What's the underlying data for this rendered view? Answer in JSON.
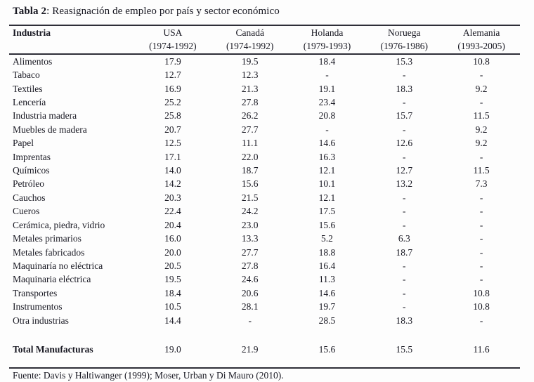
{
  "title": {
    "label_bold": "Tabla 2",
    "label_rest": ": Reasignación de empleo por país y sector económico"
  },
  "table": {
    "col_header": "Industria",
    "columns": [
      {
        "country": "USA",
        "period": "(1974-1992)"
      },
      {
        "country": "Canadá",
        "period": "(1974-1992)"
      },
      {
        "country": "Holanda",
        "period": "(1979-1993)"
      },
      {
        "country": "Noruega",
        "period": "(1976-1986)"
      },
      {
        "country": "Alemania",
        "period": "(1993-2005)"
      }
    ],
    "rows": [
      {
        "industry": "Alimentos",
        "values": [
          "17.9",
          "19.5",
          "18.4",
          "15.3",
          "10.8"
        ]
      },
      {
        "industry": "Tabaco",
        "values": [
          "12.7",
          "12.3",
          "-",
          "-",
          "-"
        ]
      },
      {
        "industry": "Textiles",
        "values": [
          "16.9",
          "21.3",
          "19.1",
          "18.3",
          "9.2"
        ]
      },
      {
        "industry": "Lencería",
        "values": [
          "25.2",
          "27.8",
          "23.4",
          "-",
          "-"
        ]
      },
      {
        "industry": "Industria madera",
        "values": [
          "25.8",
          "26.2",
          "20.8",
          "15.7",
          "11.5"
        ]
      },
      {
        "industry": "Muebles de madera",
        "values": [
          "20.7",
          "27.7",
          "-",
          "-",
          "9.2"
        ]
      },
      {
        "industry": "Papel",
        "values": [
          "12.5",
          "11.1",
          "14.6",
          "12.6",
          "9.2"
        ]
      },
      {
        "industry": "Imprentas",
        "values": [
          "17.1",
          "22.0",
          "16.3",
          "-",
          "-"
        ]
      },
      {
        "industry": "Químicos",
        "values": [
          "14.0",
          "18.7",
          "12.1",
          "12.7",
          "11.5"
        ]
      },
      {
        "industry": "Petróleo",
        "values": [
          "14.2",
          "15.6",
          "10.1",
          "13.2",
          "7.3"
        ]
      },
      {
        "industry": "Cauchos",
        "values": [
          "20.3",
          "21.5",
          "12.1",
          "-",
          "-"
        ]
      },
      {
        "industry": "Cueros",
        "values": [
          "22.4",
          "24.2",
          "17.5",
          "-",
          "-"
        ]
      },
      {
        "industry": "Cerámica, piedra, vidrio",
        "values": [
          "20.4",
          "23.0",
          "15.6",
          "-",
          "-"
        ]
      },
      {
        "industry": "Metales primarios",
        "values": [
          "16.0",
          "13.3",
          "5.2",
          "6.3",
          "-"
        ]
      },
      {
        "industry": "Metales fabricados",
        "values": [
          "20.0",
          "27.7",
          "18.8",
          "18.7",
          "-"
        ]
      },
      {
        "industry": "Maquinaría no eléctrica",
        "values": [
          "20.5",
          "27.8",
          "16.4",
          "-",
          "-"
        ]
      },
      {
        "industry": "Maquinaria eléctrica",
        "values": [
          "19.5",
          "24.6",
          "11.3",
          "-",
          "-"
        ]
      },
      {
        "industry": "Transportes",
        "values": [
          "18.4",
          "20.6",
          "14.6",
          "-",
          "10.8"
        ]
      },
      {
        "industry": "Instrumentos",
        "values": [
          "10.5",
          "28.1",
          "19.7",
          "-",
          "10.8"
        ]
      },
      {
        "industry": "Otra industrias",
        "values": [
          "14.4",
          "-",
          "28.5",
          "18.3",
          "-"
        ]
      }
    ],
    "total_row": {
      "industry": "Total Manufacturas",
      "values": [
        "19.0",
        "21.9",
        "15.6",
        "15.5",
        "11.6"
      ]
    }
  },
  "footer": {
    "source": "Fuente: Davis y Haltiwanger (1999); Moser, Urban y Di Mauro (2010)."
  }
}
